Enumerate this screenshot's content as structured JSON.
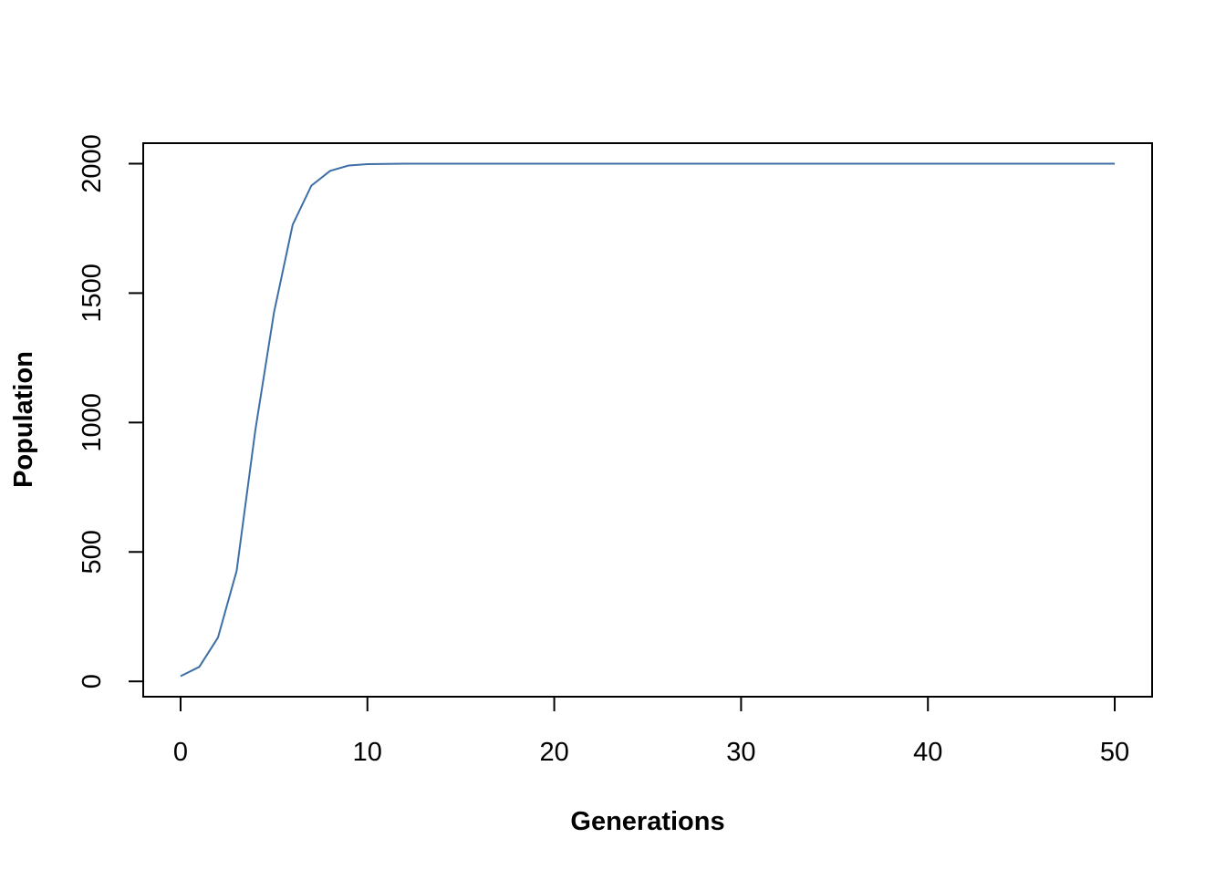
{
  "chart_data": {
    "type": "line",
    "x_label": "Generations",
    "y_label": "Population",
    "x": [
      0,
      1,
      2,
      3,
      4,
      5,
      6,
      7,
      8,
      9,
      10,
      11,
      12,
      13,
      14,
      15,
      16,
      17,
      18,
      19,
      20,
      21,
      22,
      23,
      24,
      25,
      26,
      27,
      28,
      29,
      30,
      31,
      32,
      33,
      34,
      35,
      36,
      37,
      38,
      39,
      40,
      41,
      42,
      43,
      44,
      45,
      46,
      47,
      48,
      49,
      50
    ],
    "series": [
      {
        "color": "#3d6fa6",
        "values": [
          20,
          56,
          169,
          427,
          970,
          1425,
          1764,
          1915,
          1972,
          1993,
          1998,
          1999,
          2000,
          2000,
          2000,
          2000,
          2000,
          2000,
          2000,
          2000,
          2000,
          2000,
          2000,
          2000,
          2000,
          2000,
          2000,
          2000,
          2000,
          2000,
          2000,
          2000,
          2000,
          2000,
          2000,
          2000,
          2000,
          2000,
          2000,
          2000,
          2000,
          2000,
          2000,
          2000,
          2000,
          2000,
          2000,
          2000,
          2000,
          2000,
          2000
        ]
      }
    ],
    "xlim": [
      -2,
      52
    ],
    "ylim": [
      -59.2,
      2079.2
    ],
    "xticks": [
      0,
      10,
      20,
      30,
      40,
      50
    ],
    "yticks": [
      0,
      500,
      1000,
      1500,
      2000
    ]
  }
}
